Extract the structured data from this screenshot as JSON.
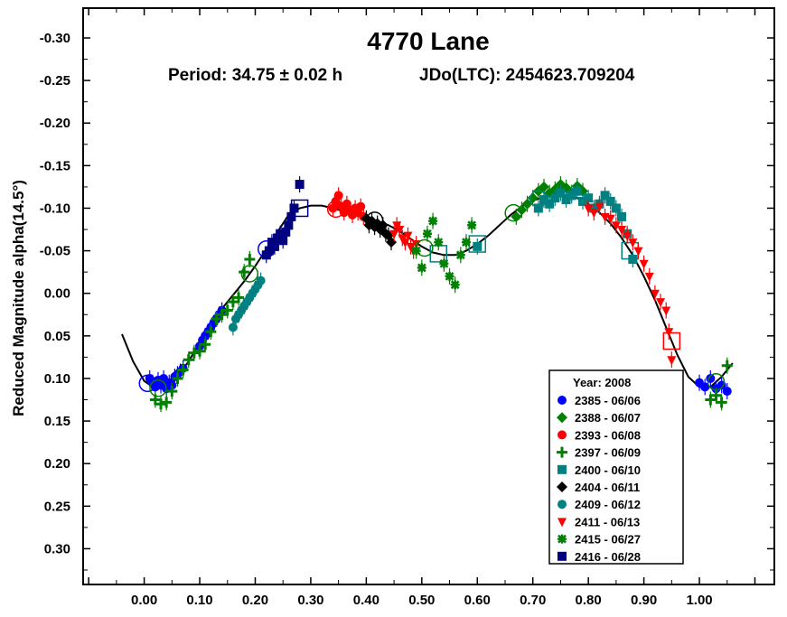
{
  "chart_data": {
    "type": "scatter",
    "title": "4770 Lane",
    "subtitle_period": "Period: 34.75 ± 0.02 h",
    "subtitle_epoch": "JDo(LTC): 2454623.709204",
    "xlabel": "",
    "ylabel": "Reduced Magnitude alpha(14.5°)",
    "xlim": [
      -0.11,
      1.135
    ],
    "ylim": [
      -0.335,
      0.342
    ],
    "y_inverted": true,
    "x_ticks": [
      "0.00",
      "0.10",
      "0.20",
      "0.30",
      "0.40",
      "0.50",
      "0.60",
      "0.70",
      "0.80",
      "0.90",
      "1.00"
    ],
    "x_tick_values": [
      0,
      0.1,
      0.2,
      0.3,
      0.4,
      0.5,
      0.6,
      0.7,
      0.8,
      0.9,
      1.0
    ],
    "y_ticks": [
      "-0.30",
      "-0.25",
      "-0.20",
      "-0.15",
      "-0.10",
      "-0.05",
      "0.00",
      "0.05",
      "0.10",
      "0.15",
      "0.20",
      "0.25",
      "0.30"
    ],
    "y_tick_values": [
      -0.3,
      -0.25,
      -0.2,
      -0.15,
      -0.1,
      -0.05,
      0.0,
      0.05,
      0.1,
      0.15,
      0.2,
      0.25,
      0.3
    ],
    "grid": false,
    "legend_position": "bottom-right",
    "legend_title": "Year: 2008",
    "fit_curve": [
      [
        -0.04,
        0.048
      ],
      [
        -0.02,
        0.08
      ],
      [
        0.0,
        0.103
      ],
      [
        0.02,
        0.112
      ],
      [
        0.04,
        0.11
      ],
      [
        0.06,
        0.098
      ],
      [
        0.08,
        0.08
      ],
      [
        0.1,
        0.058
      ],
      [
        0.12,
        0.035
      ],
      [
        0.14,
        0.018
      ],
      [
        0.16,
        0.002
      ],
      [
        0.18,
        -0.014
      ],
      [
        0.2,
        -0.032
      ],
      [
        0.22,
        -0.052
      ],
      [
        0.24,
        -0.072
      ],
      [
        0.26,
        -0.092
      ],
      [
        0.28,
        -0.1
      ],
      [
        0.3,
        -0.103
      ],
      [
        0.32,
        -0.103
      ],
      [
        0.34,
        -0.1
      ],
      [
        0.36,
        -0.096
      ],
      [
        0.38,
        -0.092
      ],
      [
        0.4,
        -0.088
      ],
      [
        0.42,
        -0.085
      ],
      [
        0.44,
        -0.08
      ],
      [
        0.46,
        -0.073
      ],
      [
        0.48,
        -0.064
      ],
      [
        0.5,
        -0.055
      ],
      [
        0.52,
        -0.048
      ],
      [
        0.54,
        -0.045
      ],
      [
        0.56,
        -0.045
      ],
      [
        0.58,
        -0.05
      ],
      [
        0.6,
        -0.058
      ],
      [
        0.62,
        -0.068
      ],
      [
        0.64,
        -0.08
      ],
      [
        0.66,
        -0.092
      ],
      [
        0.68,
        -0.102
      ],
      [
        0.7,
        -0.109
      ],
      [
        0.72,
        -0.113
      ],
      [
        0.74,
        -0.115
      ],
      [
        0.76,
        -0.115
      ],
      [
        0.78,
        -0.112
      ],
      [
        0.8,
        -0.105
      ],
      [
        0.82,
        -0.095
      ],
      [
        0.84,
        -0.082
      ],
      [
        0.86,
        -0.065
      ],
      [
        0.88,
        -0.045
      ],
      [
        0.9,
        -0.02
      ],
      [
        0.92,
        0.008
      ],
      [
        0.94,
        0.04
      ],
      [
        0.96,
        0.072
      ],
      [
        0.98,
        0.098
      ],
      [
        1.0,
        0.11
      ],
      [
        1.02,
        0.11
      ],
      [
        1.04,
        0.098
      ],
      [
        1.06,
        0.082
      ]
    ],
    "series": [
      {
        "name": "2385 - 06/06",
        "color": "#0000ff",
        "marker": "circle",
        "ring_x": [
          0.006,
          0.22
        ],
        "x": [
          0.01,
          0.015,
          0.02,
          0.025,
          0.03,
          0.035,
          0.04,
          0.045,
          0.05,
          0.055,
          0.06,
          0.065,
          0.07,
          0.1,
          0.105,
          0.11,
          0.115,
          0.12,
          0.125,
          0.13,
          0.135,
          0.14,
          1.0,
          1.01,
          1.02,
          1.03,
          1.04,
          1.05
        ],
        "y": [
          0.1,
          0.105,
          0.11,
          0.102,
          0.108,
          0.1,
          0.112,
          0.105,
          0.108,
          0.098,
          0.095,
          0.092,
          0.088,
          0.062,
          0.055,
          0.05,
          0.045,
          0.04,
          0.035,
          0.03,
          0.025,
          0.02,
          0.105,
          0.11,
          0.1,
          0.112,
          0.108,
          0.115
        ]
      },
      {
        "name": "2388 - 06/07",
        "color": "#008000",
        "marker": "diamond",
        "ring_x": [
          0.665
        ],
        "x": [
          0.67,
          0.68,
          0.69,
          0.7,
          0.71,
          0.72,
          0.73,
          0.74,
          0.75,
          0.76,
          0.77,
          0.78,
          0.79
        ],
        "y": [
          -0.09,
          -0.098,
          -0.105,
          -0.112,
          -0.12,
          -0.125,
          -0.118,
          -0.122,
          -0.128,
          -0.124,
          -0.118,
          -0.126,
          -0.12
        ]
      },
      {
        "name": "2393 - 06/08",
        "color": "#ff0000",
        "marker": "circle",
        "ring_x": [
          0.345
        ],
        "x": [
          0.34,
          0.345,
          0.35,
          0.355,
          0.36,
          0.365,
          0.37,
          0.375,
          0.38,
          0.385,
          0.39,
          0.395
        ],
        "y": [
          -0.1,
          -0.108,
          -0.115,
          -0.102,
          -0.095,
          -0.105,
          -0.098,
          -0.092,
          -0.1,
          -0.095,
          -0.102,
          -0.09
        ]
      },
      {
        "name": "2397 - 06/09",
        "color": "#008000",
        "marker": "plus",
        "ring_x": [
          0.025,
          0.19,
          1.03
        ],
        "x": [
          0.02,
          0.03,
          0.04,
          0.05,
          0.06,
          0.07,
          0.08,
          0.09,
          0.1,
          0.11,
          0.12,
          0.13,
          0.14,
          0.15,
          0.16,
          0.17,
          0.18,
          0.19,
          1.02,
          1.03,
          1.04,
          1.05
        ],
        "y": [
          0.125,
          0.13,
          0.128,
          0.115,
          0.1,
          0.09,
          0.078,
          0.07,
          0.068,
          0.06,
          0.045,
          0.03,
          0.025,
          0.02,
          0.01,
          0.005,
          -0.025,
          -0.04,
          0.125,
          0.12,
          0.128,
          0.085
        ]
      },
      {
        "name": "2400 - 06/10",
        "color": "#008080",
        "marker": "square",
        "ring_x": [
          0.53,
          0.6,
          0.875
        ],
        "x": [
          0.6,
          0.71,
          0.72,
          0.73,
          0.74,
          0.75,
          0.76,
          0.77,
          0.78,
          0.79,
          0.8,
          0.81,
          0.82,
          0.83,
          0.84,
          0.85,
          0.86,
          0.87,
          0.88
        ],
        "y": [
          -0.055,
          -0.1,
          -0.11,
          -0.105,
          -0.112,
          -0.118,
          -0.11,
          -0.115,
          -0.12,
          -0.108,
          -0.112,
          -0.1,
          -0.105,
          -0.115,
          -0.108,
          -0.1,
          -0.09,
          -0.07,
          -0.04
        ]
      },
      {
        "name": "2404 - 06/11",
        "color": "#000000",
        "marker": "diamond",
        "ring_x": [
          0.415
        ],
        "x": [
          0.4,
          0.405,
          0.41,
          0.415,
          0.42,
          0.425,
          0.43,
          0.435,
          0.44,
          0.445
        ],
        "y": [
          -0.088,
          -0.08,
          -0.085,
          -0.078,
          -0.082,
          -0.075,
          -0.08,
          -0.07,
          -0.068,
          -0.06
        ]
      },
      {
        "name": "2409 - 06/12",
        "color": "#008080",
        "marker": "circle",
        "ring_x": [
          0.71
        ],
        "x": [
          0.16,
          0.165,
          0.17,
          0.175,
          0.18,
          0.185,
          0.19,
          0.195,
          0.2,
          0.205,
          0.21
        ],
        "y": [
          0.04,
          0.03,
          0.025,
          0.02,
          0.015,
          0.01,
          0.005,
          0.0,
          -0.005,
          -0.01,
          -0.015
        ]
      },
      {
        "name": "2411 - 06/13",
        "color": "#ff0000",
        "marker": "triangle",
        "ring_x": [
          0.95
        ],
        "x": [
          0.45,
          0.455,
          0.46,
          0.465,
          0.47,
          0.475,
          0.48,
          0.485,
          0.49,
          0.8,
          0.81,
          0.82,
          0.83,
          0.84,
          0.85,
          0.86,
          0.87,
          0.88,
          0.89,
          0.9,
          0.91,
          0.92,
          0.93,
          0.94,
          0.945,
          0.95
        ],
        "y": [
          -0.07,
          -0.08,
          -0.075,
          -0.065,
          -0.06,
          -0.068,
          -0.055,
          -0.05,
          -0.058,
          -0.1,
          -0.095,
          -0.102,
          -0.09,
          -0.088,
          -0.08,
          -0.075,
          -0.068,
          -0.06,
          -0.05,
          -0.035,
          -0.02,
          0.0,
          0.01,
          0.02,
          0.045,
          0.078
        ]
      },
      {
        "name": "2415 - 06/27",
        "color": "#008000",
        "marker": "asterisk",
        "ring_x": [
          0.505
        ],
        "x": [
          0.49,
          0.5,
          0.51,
          0.52,
          0.53,
          0.54,
          0.55,
          0.56,
          0.57,
          0.58,
          0.59
        ],
        "y": [
          -0.05,
          -0.03,
          -0.07,
          -0.085,
          -0.06,
          -0.035,
          -0.02,
          -0.01,
          -0.045,
          -0.06,
          -0.08
        ]
      },
      {
        "name": "2416 - 06/28",
        "color": "#000080",
        "marker": "square",
        "ring_x": [
          0.28
        ],
        "x": [
          0.22,
          0.225,
          0.23,
          0.235,
          0.24,
          0.245,
          0.25,
          0.255,
          0.26,
          0.265,
          0.27,
          0.28
        ],
        "y": [
          -0.045,
          -0.05,
          -0.06,
          -0.055,
          -0.065,
          -0.07,
          -0.062,
          -0.072,
          -0.08,
          -0.09,
          -0.1,
          -0.128
        ]
      }
    ]
  }
}
